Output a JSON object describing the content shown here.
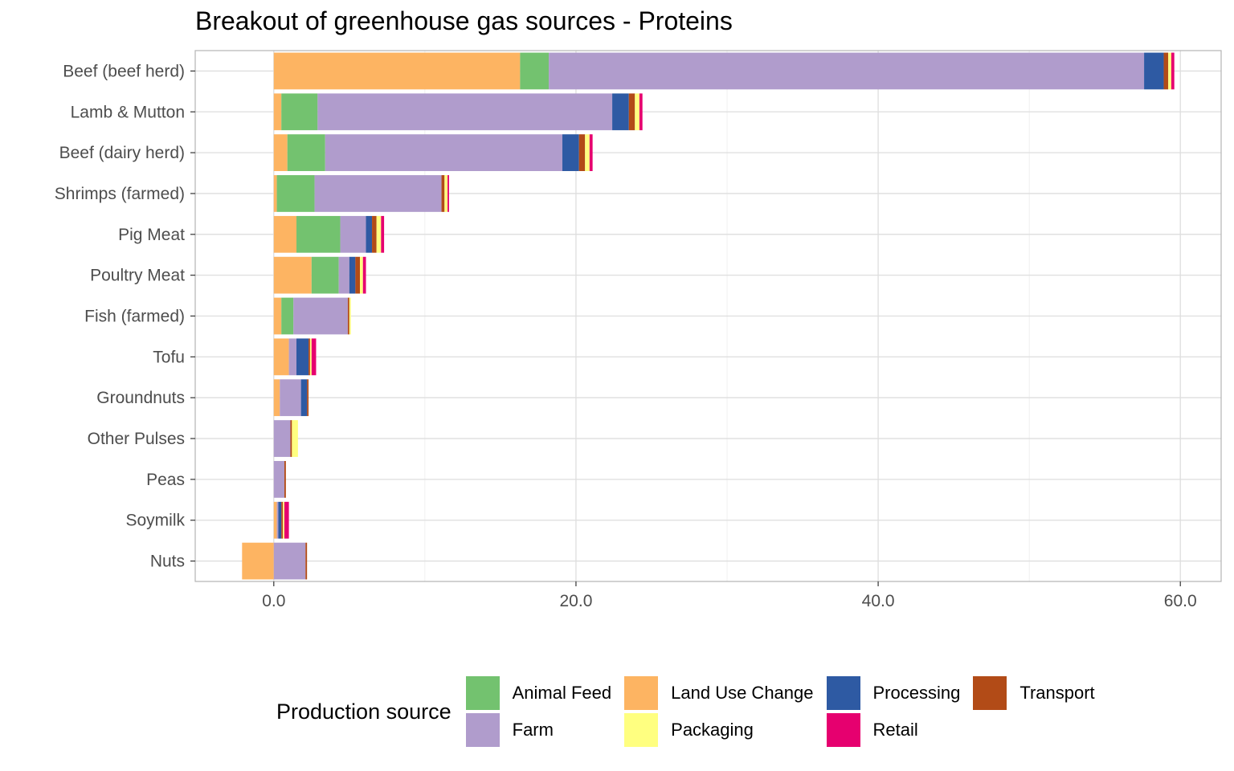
{
  "chart_data": {
    "type": "bar",
    "orientation": "horizontal",
    "stacked": true,
    "title": "Breakout of greenhouse gas sources - Proteins",
    "xlabel": "",
    "ylabel": "",
    "xlim": [
      -5.2,
      62.7
    ],
    "x_ticks": [
      0,
      20,
      40,
      60
    ],
    "x_tick_labels": [
      "0.0",
      "20.0",
      "40.0",
      "60.0"
    ],
    "grid": true,
    "legend_position": "bottom",
    "legend_title": "Production source",
    "categories": [
      "Beef (beef herd)",
      "Lamb & Mutton",
      "Beef (dairy herd)",
      "Shrimps (farmed)",
      "Pig Meat",
      "Poultry Meat",
      "Fish (farmed)",
      "Tofu",
      "Groundnuts",
      "Other Pulses",
      "Peas",
      "Soymilk",
      "Nuts"
    ],
    "series": [
      {
        "name": "Land Use Change",
        "color": "#FDB462",
        "values": [
          16.3,
          0.5,
          0.9,
          0.2,
          1.5,
          2.5,
          0.5,
          1.0,
          0.4,
          0.0,
          0.0,
          0.2,
          -2.1
        ]
      },
      {
        "name": "Animal Feed",
        "color": "#73C26F",
        "values": [
          1.9,
          2.4,
          2.5,
          2.5,
          2.9,
          1.8,
          0.8,
          0.0,
          0.0,
          0.0,
          0.0,
          0.0,
          0.0
        ]
      },
      {
        "name": "Farm",
        "color": "#B09CCC",
        "values": [
          39.4,
          19.5,
          15.7,
          8.4,
          1.7,
          0.7,
          3.6,
          0.5,
          1.4,
          1.1,
          0.7,
          0.1,
          2.1
        ]
      },
      {
        "name": "Processing",
        "color": "#2E5AA3",
        "values": [
          1.3,
          1.1,
          1.1,
          0.0,
          0.4,
          0.4,
          0.0,
          0.8,
          0.4,
          0.0,
          0.0,
          0.2,
          0.0
        ]
      },
      {
        "name": "Transport",
        "color": "#B24B17",
        "values": [
          0.3,
          0.4,
          0.4,
          0.2,
          0.3,
          0.3,
          0.1,
          0.1,
          0.1,
          0.1,
          0.1,
          0.1,
          0.1
        ]
      },
      {
        "name": "Packaging",
        "color": "#FFFF80",
        "values": [
          0.2,
          0.3,
          0.3,
          0.2,
          0.3,
          0.2,
          0.1,
          0.1,
          0.0,
          0.4,
          0.0,
          0.1,
          0.0
        ]
      },
      {
        "name": "Retail",
        "color": "#E6006F",
        "values": [
          0.2,
          0.2,
          0.2,
          0.1,
          0.2,
          0.2,
          0.0,
          0.3,
          0.0,
          0.0,
          0.0,
          0.3,
          0.0
        ]
      }
    ]
  },
  "legend": {
    "title": "Production source",
    "items": [
      {
        "label": "Animal Feed",
        "color": "#73C26F"
      },
      {
        "label": "Farm",
        "color": "#B09CCC"
      },
      {
        "label": "Land Use Change",
        "color": "#FDB462"
      },
      {
        "label": "Packaging",
        "color": "#FFFF80"
      },
      {
        "label": "Processing",
        "color": "#2E5AA3"
      },
      {
        "label": "Retail",
        "color": "#E6006F"
      },
      {
        "label": "Transport",
        "color": "#B24B17"
      }
    ]
  }
}
